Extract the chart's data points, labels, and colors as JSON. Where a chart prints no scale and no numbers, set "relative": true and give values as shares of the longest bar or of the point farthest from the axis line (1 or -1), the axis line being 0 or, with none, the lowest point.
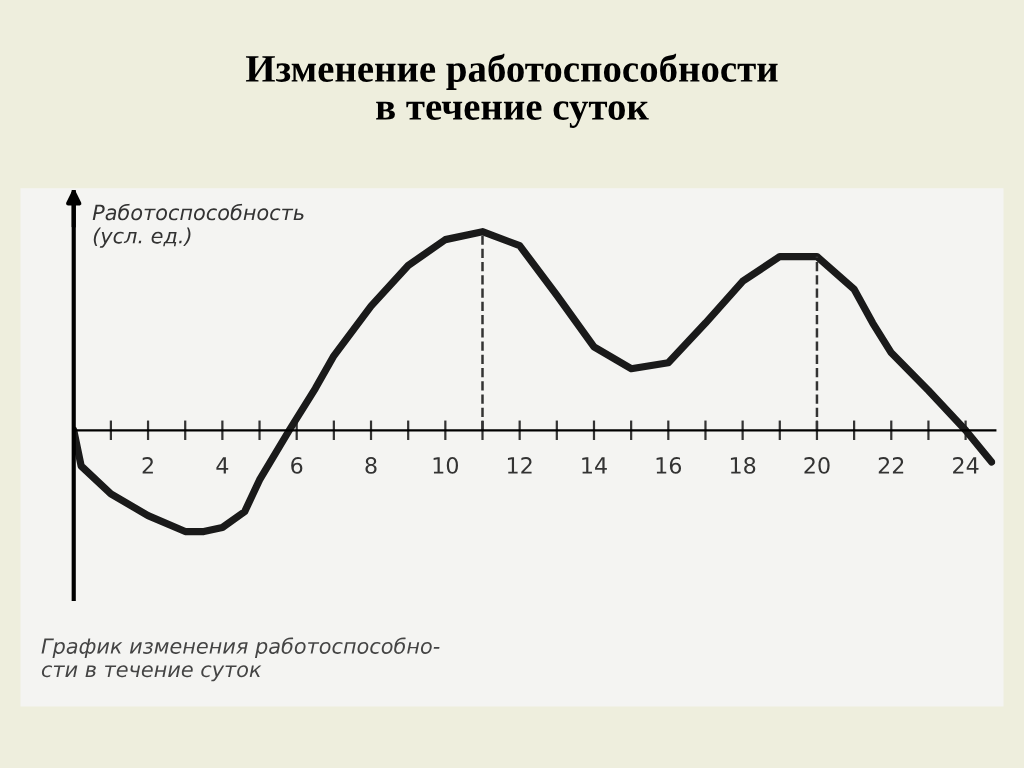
{
  "chart_data": {
    "type": "line",
    "title": "Изменение работоспособности\nв течение суток",
    "ylabel": "Работоспособность\n(усл. ед.)",
    "relative": true,
    "x": [
      0,
      0.2,
      1,
      2,
      3,
      3.5,
      4,
      4.6,
      5,
      5.8,
      6.5,
      7,
      8,
      9,
      10,
      11,
      12,
      13,
      14,
      15,
      16,
      17,
      18,
      19,
      20,
      21,
      21.5,
      22,
      23,
      24,
      24.7
    ],
    "series": [
      {
        "color": "#1a1a1a",
        "values": [
          0,
          -0.18,
          -0.32,
          -0.43,
          -0.51,
          -0.51,
          -0.49,
          -0.41,
          -0.25,
          0,
          0.21,
          0.375,
          0.625,
          0.83,
          0.96,
          1,
          0.93,
          0.68,
          0.42,
          0.31,
          0.34,
          0.54,
          0.75,
          0.875,
          0.875,
          0.71,
          0.54,
          0.39,
          0.2,
          0,
          -0.16
        ]
      }
    ],
    "xlim": [
      0,
      24.8
    ],
    "xticks": [
      {
        "value": 1,
        "label": null
      },
      2,
      {
        "value": 3,
        "label": null
      },
      4,
      {
        "value": 5,
        "label": null
      },
      6,
      {
        "value": 7,
        "label": null
      },
      8,
      {
        "value": 9,
        "label": null
      },
      10,
      {
        "value": 11,
        "label": null
      },
      12,
      {
        "value": 13,
        "label": null
      },
      14,
      {
        "value": 15,
        "label": null
      },
      16,
      {
        "value": 17,
        "label": null
      },
      18,
      {
        "value": 19,
        "label": null
      },
      20,
      {
        "value": 21,
        "label": null
      },
      22,
      {
        "value": 23,
        "label": null
      },
      24
    ],
    "ref_lines": [
      {
        "axis": "x",
        "value": 11,
        "line_style": "dashed"
      },
      {
        "axis": "x",
        "value": 20,
        "line_style": "dashed"
      }
    ],
    "annotations": [
      "График изменения работоспособно-\nсти в течение суток"
    ],
    "grid": false,
    "legend": false,
    "marker": "none",
    "line_style": "solid"
  }
}
